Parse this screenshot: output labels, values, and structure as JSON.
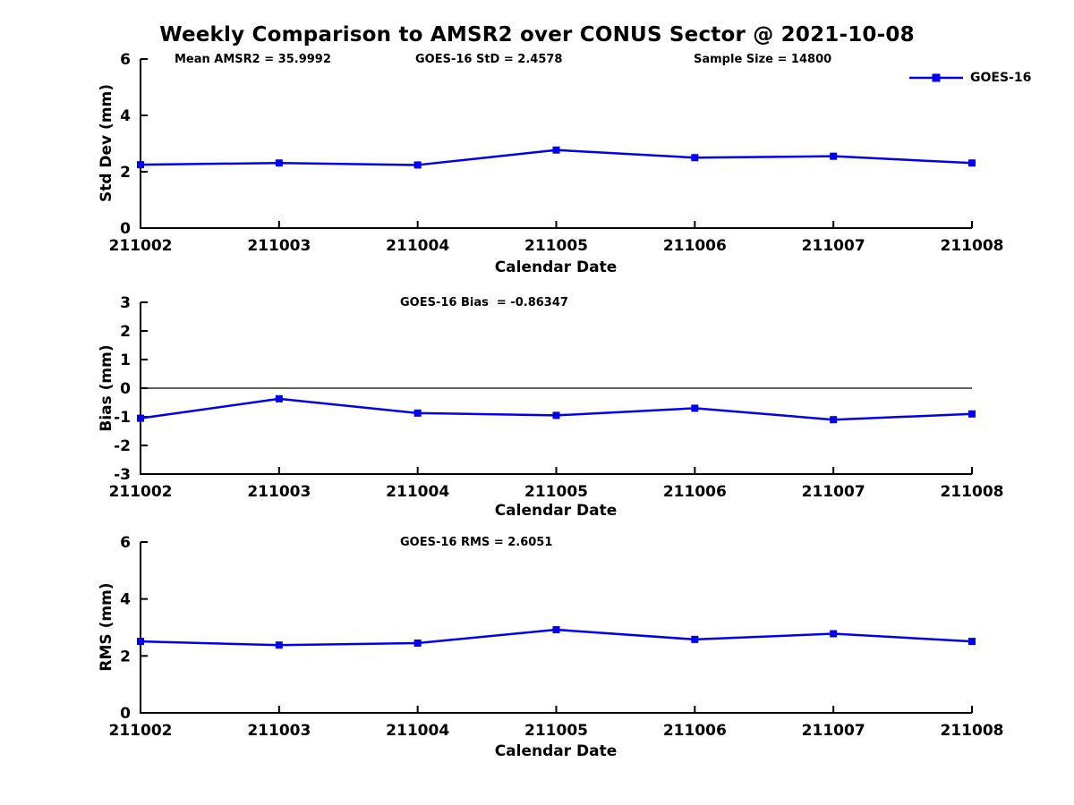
{
  "figure": {
    "title": "Weekly Comparison to AMSR2 over CONUS Sector @ 2021-10-08",
    "background": "#ffffff"
  },
  "legend": {
    "label": "GOES-16",
    "color": "#0000ee",
    "marker": "square"
  },
  "chart_data": [
    {
      "type": "line",
      "panel": "std-dev",
      "annotations": [
        "Mean AMSR2 = 35.9992",
        "GOES-16 StD = 2.4578",
        "Sample Size = 14800"
      ],
      "xlabel": "Calendar Date",
      "ylabel": "Std Dev (mm)",
      "categories": [
        "211002",
        "211003",
        "211004",
        "211005",
        "211006",
        "211007",
        "211008"
      ],
      "series": [
        {
          "name": "GOES-16",
          "color": "#0000ee",
          "values": [
            2.25,
            2.31,
            2.24,
            2.77,
            2.5,
            2.55,
            2.31
          ]
        }
      ],
      "ylim": [
        0,
        6
      ],
      "yticks": [
        6,
        4,
        2,
        0
      ],
      "grid": false,
      "zero_line": false,
      "legend_position": "top-right"
    },
    {
      "type": "line",
      "panel": "bias",
      "annotations": [
        "GOES-16 Bias  = -0.86347"
      ],
      "xlabel": "Calendar Date",
      "ylabel": "Bias (mm)",
      "categories": [
        "211002",
        "211003",
        "211004",
        "211005",
        "211006",
        "211007",
        "211008"
      ],
      "series": [
        {
          "name": "GOES-16",
          "color": "#0000ee",
          "values": [
            -1.05,
            -0.37,
            -0.87,
            -0.95,
            -0.7,
            -1.1,
            -0.9
          ]
        }
      ],
      "ylim": [
        -3,
        3
      ],
      "yticks": [
        3,
        2,
        1,
        0,
        -1,
        -2,
        -3
      ],
      "grid": false,
      "zero_line": true,
      "legend_position": "none"
    },
    {
      "type": "line",
      "panel": "rms",
      "annotations": [
        "GOES-16 RMS = 2.6051"
      ],
      "xlabel": "Calendar Date",
      "ylabel": "RMS (mm)",
      "categories": [
        "211002",
        "211003",
        "211004",
        "211005",
        "211006",
        "211007",
        "211008"
      ],
      "series": [
        {
          "name": "GOES-16",
          "color": "#0000ee",
          "values": [
            2.51,
            2.38,
            2.45,
            2.92,
            2.58,
            2.78,
            2.51
          ]
        }
      ],
      "ylim": [
        0,
        6
      ],
      "yticks": [
        6,
        4,
        2,
        0
      ],
      "grid": false,
      "zero_line": false,
      "legend_position": "none"
    }
  ]
}
